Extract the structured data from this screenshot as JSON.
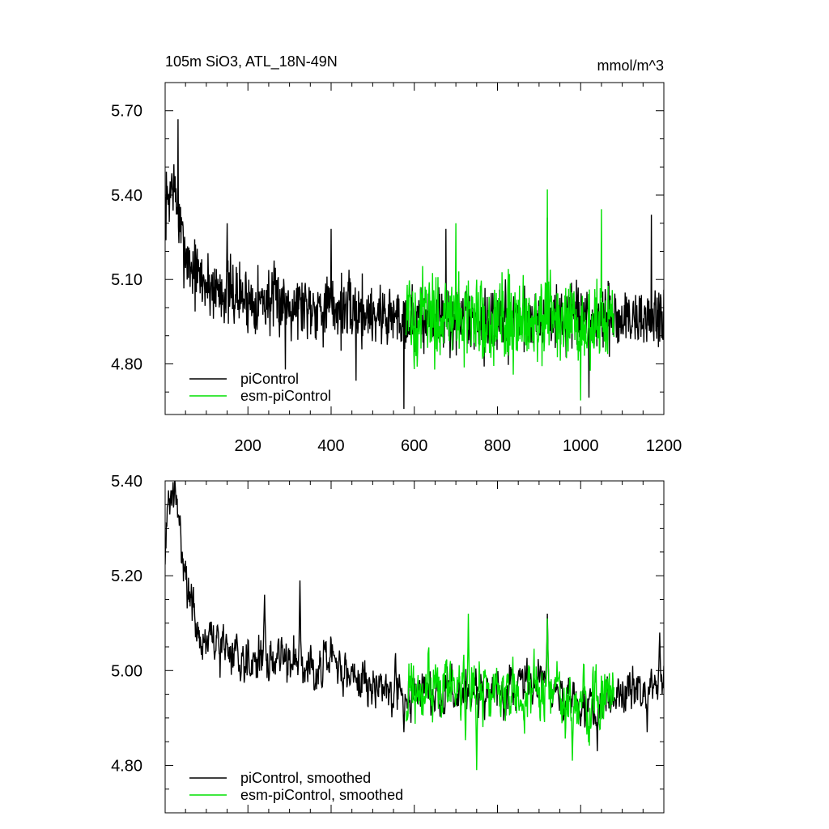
{
  "title_left": "105m SiO3, ATL_18N-49N",
  "title_right": "mmol/m^3",
  "colors": {
    "piControl": "#000000",
    "esm": "#00e000"
  },
  "chart_data": [
    {
      "type": "line",
      "title": "105m SiO3, ATL_18N-49N",
      "units": "mmol/m^3",
      "xlim": [
        1,
        1200
      ],
      "ylim": [
        4.62,
        5.8
      ],
      "xticks": [
        200,
        400,
        600,
        800,
        1000,
        1200
      ],
      "xtick_labels": [
        "200",
        "400",
        "600",
        "800",
        "1000",
        "1200"
      ],
      "yticks": [
        4.8,
        5.1,
        5.4,
        5.7
      ],
      "ytick_labels": [
        "4.80",
        "5.10",
        "5.40",
        "5.70"
      ],
      "legend_position": "bottom-left",
      "series": [
        {
          "name": "piControl",
          "x_start": 1,
          "x_end": 1200,
          "anchors": [
            [
              1,
              5.35
            ],
            [
              20,
              5.45
            ],
            [
              40,
              5.25
            ],
            [
              60,
              5.15
            ],
            [
              100,
              5.08
            ],
            [
              200,
              5.03
            ],
            [
              300,
              5.02
            ],
            [
              400,
              5.0
            ],
            [
              500,
              4.98
            ],
            [
              600,
              4.96
            ],
            [
              700,
              4.96
            ],
            [
              800,
              4.95
            ],
            [
              900,
              4.97
            ],
            [
              1000,
              4.95
            ],
            [
              1100,
              4.96
            ],
            [
              1200,
              4.96
            ]
          ],
          "noise": 0.085,
          "extremes": [
            [
              32,
              5.67
            ],
            [
              150,
              5.3
            ],
            [
              290,
              4.78
            ],
            [
              400,
              5.28
            ],
            [
              460,
              4.74
            ],
            [
              575,
              4.64
            ],
            [
              676,
              5.28
            ],
            [
              920,
              5.32
            ],
            [
              1020,
              4.68
            ],
            [
              1170,
              5.33
            ]
          ]
        },
        {
          "name": "esm-piControl",
          "x_start": 580,
          "x_end": 1080,
          "anchors": [
            [
              580,
              4.96
            ],
            [
              700,
              4.97
            ],
            [
              800,
              4.96
            ],
            [
              900,
              4.97
            ],
            [
              1000,
              4.92
            ],
            [
              1080,
              4.96
            ]
          ],
          "noise": 0.11,
          "extremes": [
            [
              700,
              5.3
            ],
            [
              920,
              5.42
            ],
            [
              1000,
              4.67
            ],
            [
              1050,
              5.35
            ]
          ]
        }
      ]
    },
    {
      "type": "line",
      "xlim": [
        1,
        1200
      ],
      "ylim": [
        4.7,
        5.4
      ],
      "xticks": [
        200,
        400,
        600,
        800,
        1000,
        1200
      ],
      "yticks": [
        4.8,
        5.0,
        5.2,
        5.4
      ],
      "ytick_labels": [
        "4.80",
        "5.00",
        "5.20",
        "5.40"
      ],
      "legend_position": "bottom-left",
      "series": [
        {
          "name": "piControl, smoothed",
          "x_start": 1,
          "x_end": 1200,
          "anchors": [
            [
              1,
              5.27
            ],
            [
              10,
              5.35
            ],
            [
              20,
              5.38
            ],
            [
              40,
              5.28
            ],
            [
              60,
              5.15
            ],
            [
              80,
              5.08
            ],
            [
              100,
              5.06
            ],
            [
              200,
              5.03
            ],
            [
              300,
              5.02
            ],
            [
              400,
              5.01
            ],
            [
              500,
              4.97
            ],
            [
              600,
              4.95
            ],
            [
              700,
              4.95
            ],
            [
              800,
              4.95
            ],
            [
              900,
              4.98
            ],
            [
              1000,
              4.92
            ],
            [
              1100,
              4.95
            ],
            [
              1200,
              4.98
            ]
          ],
          "noise": 0.03,
          "extremes": [
            [
              240,
              5.16
            ],
            [
              325,
              5.19
            ],
            [
              445,
              4.97
            ],
            [
              575,
              4.87
            ],
            [
              920,
              5.12
            ],
            [
              1040,
              4.83
            ],
            [
              1160,
              4.87
            ],
            [
              1190,
              5.08
            ]
          ]
        },
        {
          "name": "esm-piControl, smoothed",
          "x_start": 580,
          "x_end": 1080,
          "anchors": [
            [
              580,
              4.94
            ],
            [
              650,
              4.97
            ],
            [
              750,
              4.96
            ],
            [
              850,
              4.95
            ],
            [
              950,
              4.94
            ],
            [
              1000,
              4.9
            ],
            [
              1080,
              4.97
            ]
          ],
          "noise": 0.045,
          "extremes": [
            [
              730,
              5.12
            ],
            [
              750,
              4.79
            ],
            [
              920,
              5.11
            ],
            [
              980,
              4.81
            ]
          ]
        }
      ]
    }
  ]
}
